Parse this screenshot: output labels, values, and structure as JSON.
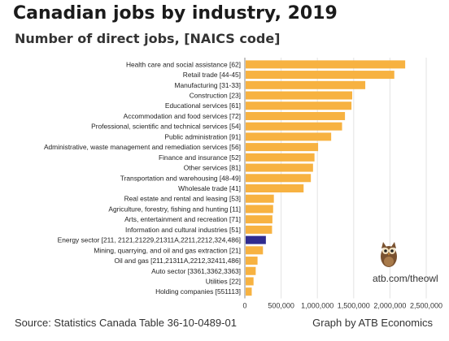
{
  "header": {
    "title": "Canadian jobs by industry, 2019",
    "subtitle": "Number of direct jobs, [NAICS code]"
  },
  "footer": {
    "source": "Source: Statistics Canada Table 36-10-0489-01",
    "credit": "Graph by ATB Economics",
    "site": "atb.com/theowl"
  },
  "colors": {
    "bar": "#f7b241",
    "highlight": "#2f2b8f",
    "grid": "#e3e3e3",
    "axis": "#888888"
  },
  "chart_data": {
    "type": "bar",
    "orientation": "horizontal",
    "categories": [
      "Health care and social assistance  [62]",
      "Retail trade  [44-45]",
      "Manufacturing  [31-33]",
      "Construction  [23]",
      "Educational services  [61]",
      "Accommodation and food services  [72]",
      "Professional, scientific and technical services  [54]",
      "Public administration  [91]",
      "Administrative, waste management and remediation services  [56]",
      "Finance and insurance  [52]",
      "Other services  [81]",
      "Transportation and warehousing  [48-49]",
      "Wholesale trade  [41]",
      "Real estate and rental and leasing  [53]",
      "Agriculture, forestry, fishing and hunting  [11]",
      "Arts, entertainment and recreation  [71]",
      "Information and cultural industries  [51]",
      "Energy sector [211, 2121,21229,21311A,2211,2212,324,486]",
      "Mining, quarrying, and oil and gas extraction  [21]",
      "Oil and gas [211,21311A,2212,32411,486]",
      "Auto sector [3361,3362,3363]",
      "Utilities  [22]",
      "Holding companies  [551113]"
    ],
    "values": [
      2210000,
      2060000,
      1660000,
      1480000,
      1470000,
      1380000,
      1340000,
      1190000,
      1010000,
      960000,
      940000,
      910000,
      810000,
      400000,
      390000,
      380000,
      375000,
      290000,
      250000,
      175000,
      150000,
      120000,
      95000
    ],
    "highlight_index": 17,
    "xlim": [
      0,
      2500000
    ],
    "xticks": [
      0,
      500000,
      1000000,
      1500000,
      2000000,
      2500000
    ],
    "xtick_labels": [
      "0",
      "500,000",
      "1,000,000",
      "1,500,000",
      "2,000,000",
      "2,500,000"
    ],
    "grid": true,
    "legend": "none"
  }
}
